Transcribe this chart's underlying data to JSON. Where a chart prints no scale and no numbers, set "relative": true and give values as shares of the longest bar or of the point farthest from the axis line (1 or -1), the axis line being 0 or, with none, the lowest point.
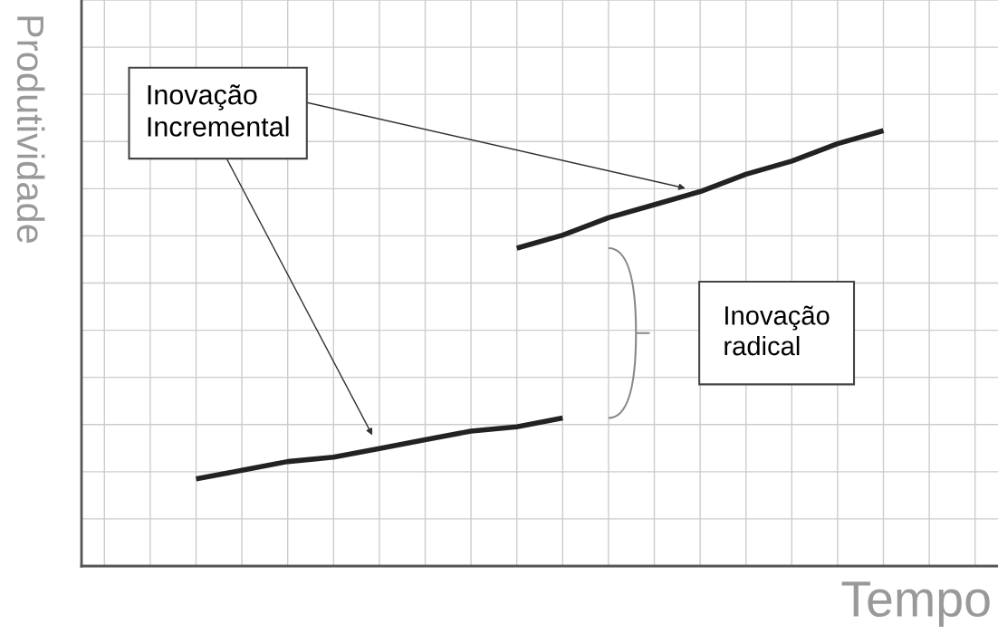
{
  "chart_data": {
    "type": "line",
    "relative": true,
    "xlabel": "Tempo",
    "ylabel": "Produtividade",
    "grid": true,
    "tick_labels": false,
    "legend": false,
    "marker": "none",
    "line_style": "solid",
    "categories": [
      null,
      null,
      null,
      null,
      null,
      null,
      null,
      null,
      null,
      null,
      null,
      null,
      null,
      null,
      null,
      null,
      null,
      null,
      null,
      null
    ],
    "series": [
      {
        "color": "#222222",
        "values": [
          null,
          null,
          0.2,
          0.22,
          0.24,
          0.25,
          0.27,
          0.29,
          0.31,
          0.32,
          0.34,
          null,
          null,
          null,
          null,
          null,
          null,
          null,
          null,
          null
        ]
      },
      {
        "color": "#222222",
        "values": [
          null,
          null,
          null,
          null,
          null,
          null,
          null,
          null,
          null,
          0.73,
          0.76,
          0.8,
          0.83,
          0.86,
          0.9,
          0.93,
          0.97,
          1.0,
          null,
          null
        ]
      }
    ],
    "annotations": [
      "Inovação\nIncremental",
      "Inovação\nradical"
    ]
  }
}
